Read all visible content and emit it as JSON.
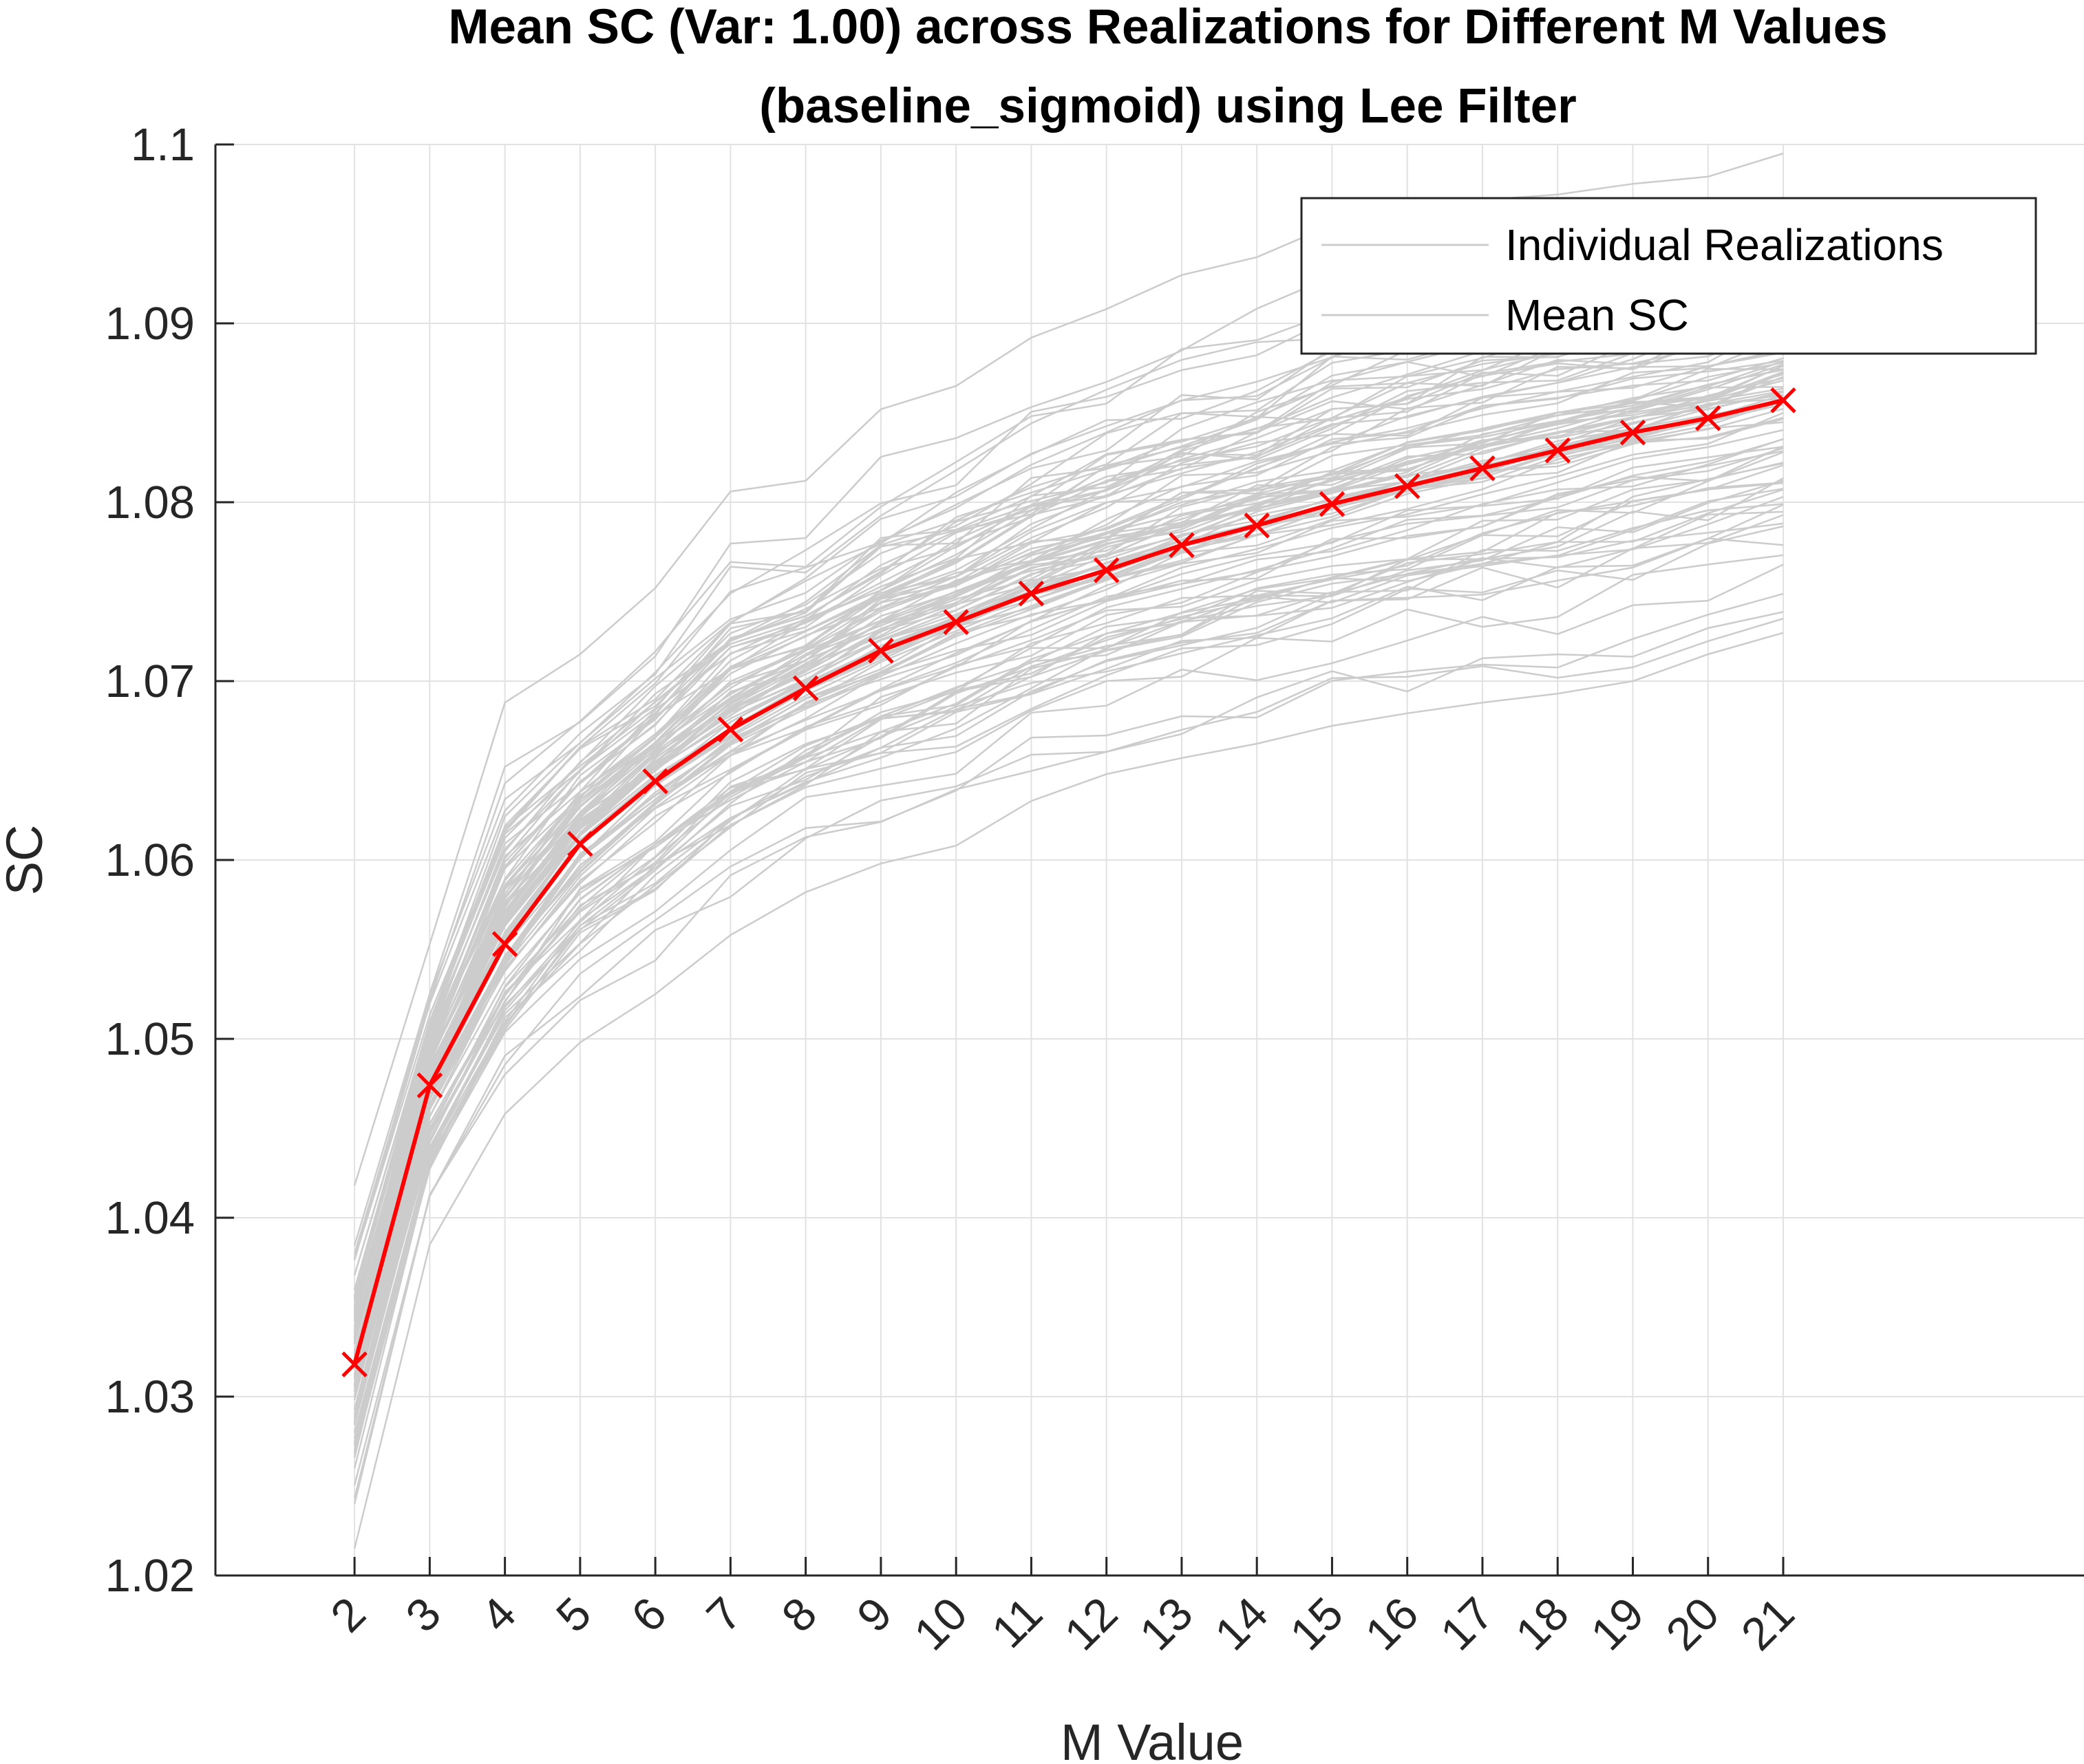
{
  "chart_data": {
    "type": "line",
    "title": "Mean SC (Var: 1.00) across Realizations for Different M Values",
    "subtitle": "(baseline_sigmoid) using Lee Filter",
    "xlabel": "M Value",
    "ylabel": "SC",
    "x": [
      2,
      3,
      4,
      5,
      6,
      7,
      8,
      9,
      10,
      11,
      12,
      13,
      14,
      15,
      16,
      17,
      18,
      19,
      20,
      21
    ],
    "x_tick_labels": [
      "2",
      "3",
      "4",
      "5",
      "6",
      "7",
      "8",
      "9",
      "10",
      "11",
      "12",
      "13",
      "14",
      "15",
      "16",
      "17",
      "18",
      "19",
      "20",
      "21"
    ],
    "xlim": [
      0.15,
      25.0
    ],
    "ylim": [
      1.02,
      1.1
    ],
    "y_ticks": [
      1.02,
      1.03,
      1.04,
      1.05,
      1.06,
      1.07,
      1.08,
      1.09,
      1.1
    ],
    "y_tick_labels": [
      "1.02",
      "1.03",
      "1.04",
      "1.05",
      "1.06",
      "1.07",
      "1.08",
      "1.09",
      "1.1"
    ],
    "grid": true,
    "legend": {
      "placement": "top-right",
      "entries": [
        "Individual Realizations",
        "Mean SC"
      ]
    },
    "series": [
      {
        "name": "Mean SC",
        "color": "#ff0000",
        "marker": "x",
        "values": [
          1.0318,
          1.0474,
          1.0553,
          1.0609,
          1.0644,
          1.0673,
          1.0696,
          1.0717,
          1.0733,
          1.0749,
          1.0762,
          1.0776,
          1.0787,
          1.0799,
          1.0809,
          1.0819,
          1.0829,
          1.0839,
          1.0847,
          1.0857
        ]
      }
    ],
    "realizations_band": {
      "name": "Individual Realizations",
      "color": "#cccccc",
      "count": 100,
      "min": [
        1.0215,
        1.0385,
        1.0458,
        1.0498,
        1.0525,
        1.0558,
        1.0582,
        1.0598,
        1.0608,
        1.0633,
        1.0648,
        1.0657,
        1.0665,
        1.0675,
        1.0682,
        1.0688,
        1.0693,
        1.07,
        1.0715,
        1.0727
      ],
      "max": [
        1.0418,
        1.0553,
        1.0688,
        1.0715,
        1.0752,
        1.0806,
        1.0812,
        1.0852,
        1.0865,
        1.0892,
        1.0908,
        1.0927,
        1.0937,
        1.0955,
        1.0962,
        1.0969,
        1.0972,
        1.0978,
        1.0982,
        1.0995
      ]
    }
  }
}
